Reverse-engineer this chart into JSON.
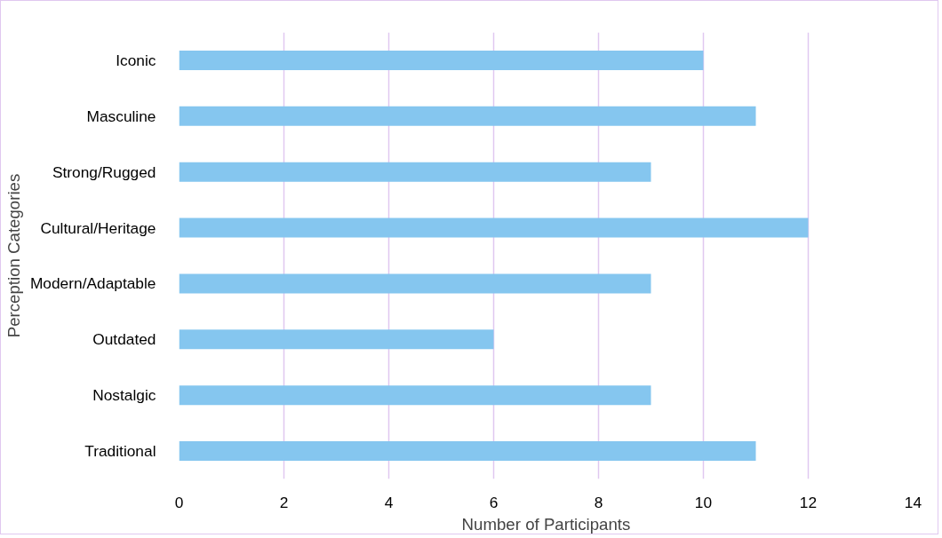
{
  "chart_data": {
    "type": "bar",
    "orientation": "horizontal",
    "xlabel": "Number of Participants",
    "ylabel": "Perception Categories",
    "categories": [
      "Iconic",
      "Masculine",
      "Strong/Rugged",
      "Cultural/Heritage",
      "Modern/Adaptable",
      "Outdated",
      "Nostalgic",
      "Traditional"
    ],
    "series": [
      {
        "color": "#85c6ef",
        "values": [
          10,
          11,
          9,
          12,
          9,
          6,
          9,
          11
        ]
      }
    ],
    "xlim": [
      0,
      14
    ],
    "xticks": [
      0,
      2,
      4,
      6,
      8,
      10,
      12,
      14
    ],
    "grid": "x"
  }
}
